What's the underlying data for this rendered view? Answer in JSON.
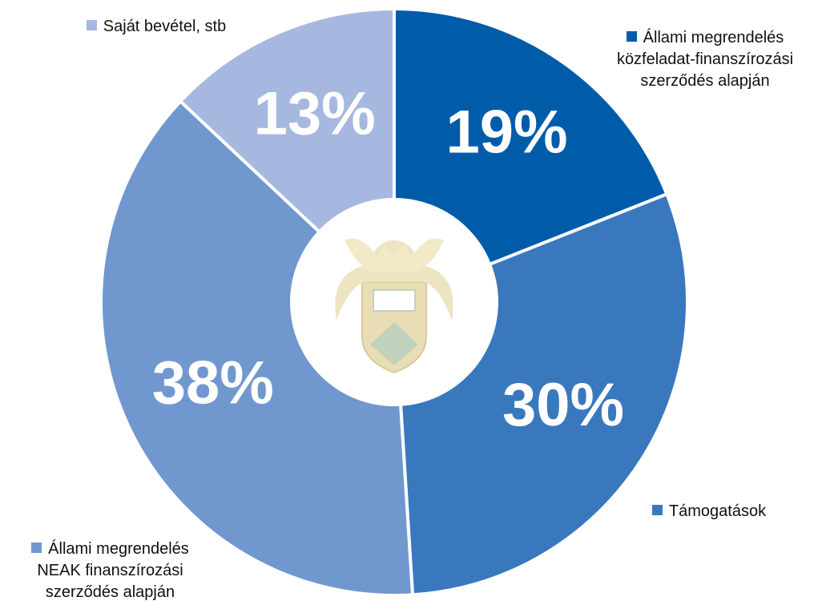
{
  "chart_data": {
    "type": "donut",
    "categories": [
      "Állami megrendelés közfeladat-finanszírozási szerződés alapján",
      "Támogatások",
      "Állami megrendelés NEAK finanszírozási szerződés alapján",
      "Saját bevétel, stb"
    ],
    "values": [
      19,
      30,
      38,
      13
    ],
    "value_labels": [
      "19%",
      "30%",
      "38%",
      "13%"
    ],
    "colors": [
      "#005ca8",
      "#3a78bd",
      "#7197cf",
      "#a6b8df"
    ]
  }
}
